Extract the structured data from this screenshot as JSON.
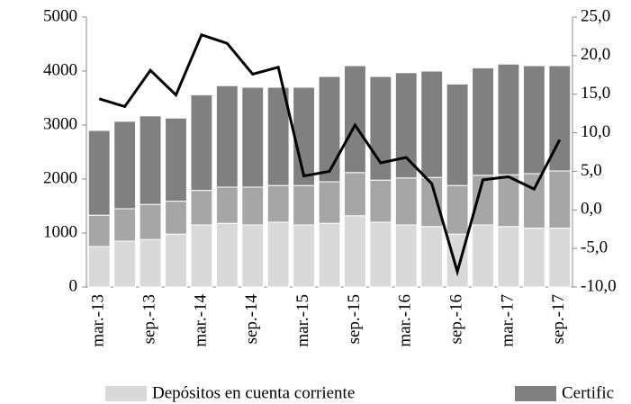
{
  "chart_data": {
    "type": "bar",
    "categories": [
      "mar.-13",
      null,
      "sep.-13",
      null,
      "mar.-14",
      null,
      "sep.-14",
      null,
      "mar.-15",
      null,
      "sep.-15",
      null,
      "mar.-16",
      null,
      "sep.-16",
      null,
      "mar.-17",
      null,
      "sep.-17"
    ],
    "series": [
      {
        "name": "Depósitos en cuenta corriente",
        "type": "bar",
        "color": "#d9d9d9",
        "values": [
          750,
          850,
          880,
          980,
          1150,
          1180,
          1150,
          1200,
          1150,
          1180,
          1320,
          1200,
          1150,
          1120,
          980,
          1150,
          1120,
          1090,
          1090
        ]
      },
      {
        "type": "bar",
        "color": "#a6a6a6",
        "values": [
          580,
          600,
          650,
          610,
          640,
          670,
          700,
          680,
          730,
          770,
          800,
          780,
          870,
          910,
          900,
          920,
          960,
          1010,
          1060
        ]
      },
      {
        "name": "Certific",
        "type": "bar",
        "color": "#808080",
        "values": [
          1570,
          1620,
          1640,
          1540,
          1770,
          1880,
          1850,
          1820,
          1820,
          1950,
          1980,
          1920,
          1950,
          1970,
          1880,
          1990,
          2050,
          2000,
          1950
        ]
      },
      {
        "type": "line",
        "axis": "y2",
        "color": "#000000",
        "values": [
          14.4,
          13.4,
          18.1,
          14.9,
          22.7,
          21.6,
          17.6,
          18.5,
          4.4,
          5.0,
          11.0,
          6.1,
          6.8,
          3.4,
          -8.0,
          3.9,
          4.3,
          2.7,
          9.1
        ]
      }
    ],
    "ylim": [
      0,
      5000
    ],
    "yticks": [
      0,
      1000,
      2000,
      3000,
      4000,
      5000
    ],
    "y2lim": [
      -10,
      25
    ],
    "y2ticks": [
      {
        "value": -10,
        "label": "-10,0"
      },
      {
        "value": -5,
        "label": "-5,0"
      },
      {
        "value": 0,
        "label": "0,0"
      },
      {
        "value": 5,
        "label": "5,0"
      },
      {
        "value": 10,
        "label": "10,0"
      },
      {
        "value": 15,
        "label": "15,0"
      },
      {
        "value": 20,
        "label": "20,0"
      },
      {
        "value": 25,
        "label": "25,0"
      }
    ]
  }
}
